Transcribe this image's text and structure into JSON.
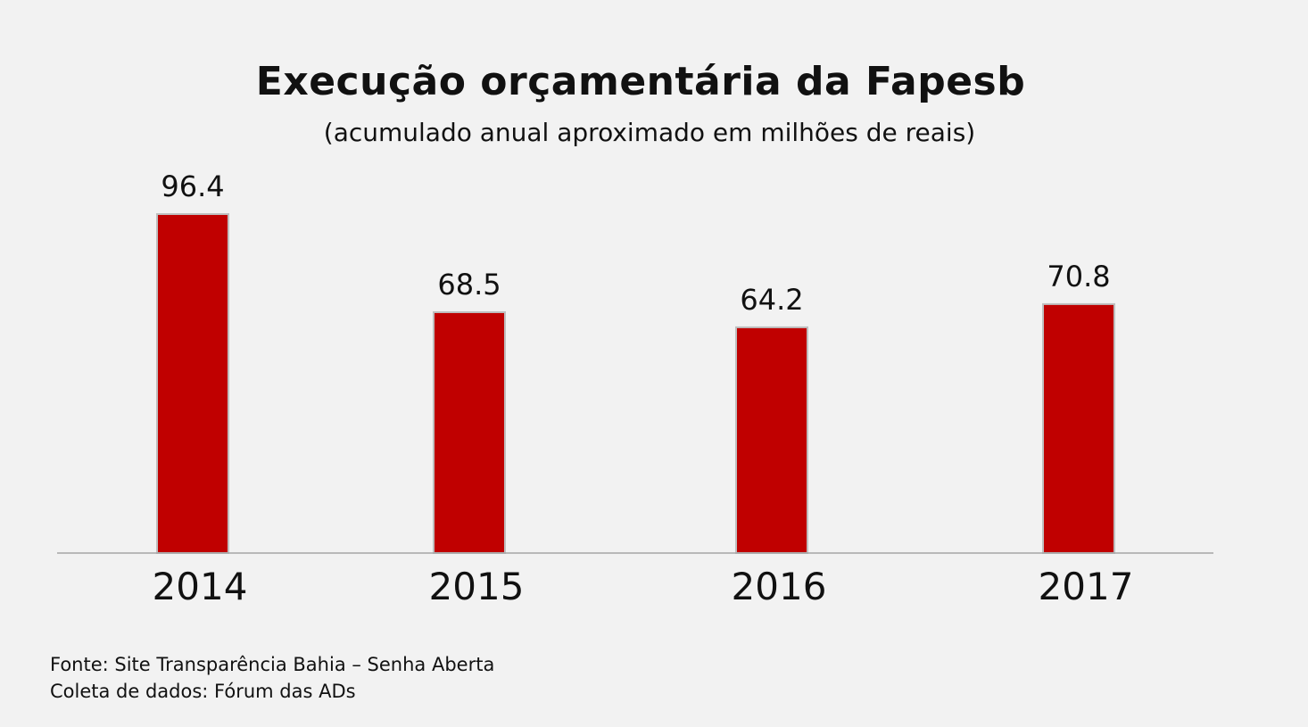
{
  "chart_data": {
    "type": "bar",
    "title": "Execução orçamentária da Fapesb",
    "subtitle": "(acumulado anual aproximado em milhões de reais)",
    "categories": [
      "2014",
      "2015",
      "2016",
      "2017"
    ],
    "values": [
      96.4,
      68.5,
      64.2,
      70.8
    ],
    "value_labels": [
      "96.4",
      "68.5",
      "64.2",
      "70.8"
    ],
    "xlabel": "",
    "ylabel": "",
    "ylim": [
      0,
      100
    ],
    "grid": false,
    "legend": "none",
    "bar_color": "#c00000",
    "bar_border_color": "#bfbfbf",
    "axis_color": "#a6a6a6"
  },
  "footer": {
    "source": "Fonte: Site Transparência Bahia – Senha Aberta",
    "collection": "Coleta de dados: Fórum das ADs"
  }
}
